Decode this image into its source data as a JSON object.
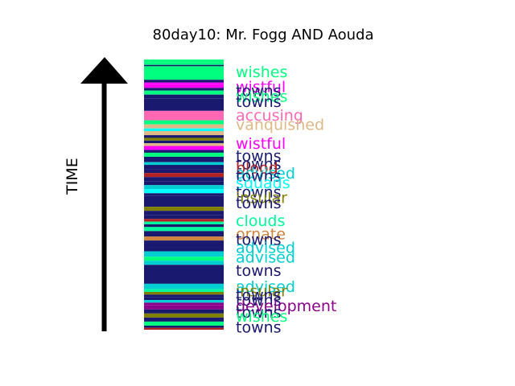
{
  "chart_data": {
    "type": "bar",
    "title": "80day10: Mr. Fogg AND Aouda",
    "axis_label": "TIME",
    "direction": "up",
    "colors": {
      "towns": "#191970",
      "wishes": "#00ff7f",
      "wistful": "#ff00ff",
      "accusing": "#ff69b4",
      "vanquished": "#deb887",
      "advised": "#00ced1",
      "blood": "#b22222",
      "squads": "#00ffff",
      "insular": "#808000",
      "clouds": "#00fa9a",
      "ornate": "#cd853f",
      "development": "#8b008b"
    },
    "bands": [
      {
        "t0": 0.0,
        "t1": 0.01,
        "word": "wishes"
      },
      {
        "t0": 0.01,
        "t1": 0.02,
        "word": "wishes"
      },
      {
        "t0": 0.02,
        "t1": 0.025,
        "word": "towns"
      },
      {
        "t0": 0.025,
        "t1": 0.075,
        "word": "wishes"
      },
      {
        "t0": 0.075,
        "t1": 0.085,
        "word": "towns"
      },
      {
        "t0": 0.085,
        "t1": 0.09,
        "word": "wistful"
      },
      {
        "t0": 0.09,
        "t1": 0.105,
        "word": "wistful"
      },
      {
        "t0": 0.105,
        "t1": 0.115,
        "word": "towns"
      },
      {
        "t0": 0.115,
        "t1": 0.13,
        "word": "wishes"
      },
      {
        "t0": 0.13,
        "t1": 0.145,
        "word": "towns"
      },
      {
        "t0": 0.145,
        "t1": 0.19,
        "word": "towns"
      },
      {
        "t0": 0.19,
        "t1": 0.225,
        "word": "accusing"
      },
      {
        "t0": 0.225,
        "t1": 0.24,
        "word": "wishes"
      },
      {
        "t0": 0.24,
        "t1": 0.255,
        "word": "vanquished"
      },
      {
        "t0": 0.255,
        "t1": 0.265,
        "word": "squads"
      },
      {
        "t0": 0.265,
        "t1": 0.28,
        "word": "vanquished"
      },
      {
        "t0": 0.28,
        "t1": 0.29,
        "word": "towns"
      },
      {
        "t0": 0.29,
        "t1": 0.3,
        "word": "insular"
      },
      {
        "t0": 0.3,
        "t1": 0.31,
        "word": "towns"
      },
      {
        "t0": 0.31,
        "t1": 0.32,
        "word": "vanquished"
      },
      {
        "t0": 0.32,
        "t1": 0.335,
        "word": "wistful"
      },
      {
        "t0": 0.335,
        "t1": 0.345,
        "word": "towns"
      },
      {
        "t0": 0.345,
        "t1": 0.36,
        "word": "wishes"
      },
      {
        "t0": 0.36,
        "t1": 0.38,
        "word": "towns"
      },
      {
        "t0": 0.38,
        "t1": 0.39,
        "word": "advised"
      },
      {
        "t0": 0.39,
        "t1": 0.405,
        "word": "towns"
      },
      {
        "t0": 0.405,
        "t1": 0.42,
        "word": "towns"
      },
      {
        "t0": 0.42,
        "t1": 0.435,
        "word": "blood"
      },
      {
        "t0": 0.435,
        "t1": 0.45,
        "word": "towns"
      },
      {
        "t0": 0.45,
        "t1": 0.465,
        "word": "towns"
      },
      {
        "t0": 0.465,
        "t1": 0.48,
        "word": "advised"
      },
      {
        "t0": 0.48,
        "t1": 0.495,
        "word": "squads"
      },
      {
        "t0": 0.495,
        "t1": 0.505,
        "word": "towns"
      },
      {
        "t0": 0.505,
        "t1": 0.545,
        "word": "towns"
      },
      {
        "t0": 0.545,
        "t1": 0.56,
        "word": "insular"
      },
      {
        "t0": 0.56,
        "t1": 0.575,
        "word": "towns"
      },
      {
        "t0": 0.575,
        "t1": 0.59,
        "word": "towns"
      },
      {
        "t0": 0.59,
        "t1": 0.6,
        "word": "blood"
      },
      {
        "t0": 0.6,
        "t1": 0.61,
        "word": "clouds"
      },
      {
        "t0": 0.61,
        "t1": 0.62,
        "word": "towns"
      },
      {
        "t0": 0.62,
        "t1": 0.635,
        "word": "clouds"
      },
      {
        "t0": 0.635,
        "t1": 0.655,
        "word": "towns"
      },
      {
        "t0": 0.655,
        "t1": 0.67,
        "word": "ornate"
      },
      {
        "t0": 0.67,
        "t1": 0.68,
        "word": "towns"
      },
      {
        "t0": 0.68,
        "t1": 0.695,
        "word": "towns"
      },
      {
        "t0": 0.695,
        "t1": 0.71,
        "word": "towns"
      },
      {
        "t0": 0.71,
        "t1": 0.73,
        "word": "advised"
      },
      {
        "t0": 0.73,
        "t1": 0.745,
        "word": "wishes"
      },
      {
        "t0": 0.745,
        "t1": 0.76,
        "word": "advised"
      },
      {
        "t0": 0.76,
        "t1": 0.83,
        "word": "towns"
      },
      {
        "t0": 0.83,
        "t1": 0.85,
        "word": "advised"
      },
      {
        "t0": 0.85,
        "t1": 0.86,
        "word": "clouds"
      },
      {
        "t0": 0.86,
        "t1": 0.87,
        "word": "insular"
      },
      {
        "t0": 0.87,
        "t1": 0.88,
        "word": "towns"
      },
      {
        "t0": 0.88,
        "t1": 0.89,
        "word": "towns"
      },
      {
        "t0": 0.89,
        "t1": 0.9,
        "word": "advised"
      },
      {
        "t0": 0.9,
        "t1": 0.91,
        "word": "development"
      },
      {
        "t0": 0.91,
        "t1": 0.925,
        "word": "development"
      },
      {
        "t0": 0.925,
        "t1": 0.94,
        "word": "towns"
      },
      {
        "t0": 0.94,
        "t1": 0.955,
        "word": "insular"
      },
      {
        "t0": 0.955,
        "t1": 0.97,
        "word": "towns"
      },
      {
        "t0": 0.97,
        "t1": 0.985,
        "word": "wishes"
      },
      {
        "t0": 0.985,
        "t1": 0.993,
        "word": "towns"
      },
      {
        "t0": 0.993,
        "t1": 1.0,
        "word": "blood"
      }
    ],
    "labels": [
      {
        "t": 0.045,
        "word": "wishes"
      },
      {
        "t": 0.1,
        "word": "wistful"
      },
      {
        "t": 0.115,
        "word": "towns"
      },
      {
        "t": 0.135,
        "word": "wishes"
      },
      {
        "t": 0.155,
        "word": "towns"
      },
      {
        "t": 0.205,
        "word": "accusing"
      },
      {
        "t": 0.24,
        "word": "vanquished"
      },
      {
        "t": 0.31,
        "word": "wistful"
      },
      {
        "t": 0.355,
        "word": "towns"
      },
      {
        "t": 0.385,
        "word": "towns"
      },
      {
        "t": 0.4,
        "word": "blood"
      },
      {
        "t": 0.42,
        "word": "advised"
      },
      {
        "t": 0.43,
        "word": "towns"
      },
      {
        "t": 0.455,
        "word": "squads"
      },
      {
        "t": 0.49,
        "word": "towns"
      },
      {
        "t": 0.51,
        "word": "insular"
      },
      {
        "t": 0.53,
        "word": "towns"
      },
      {
        "t": 0.595,
        "word": "clouds"
      },
      {
        "t": 0.645,
        "word": "ornate"
      },
      {
        "t": 0.665,
        "word": "towns"
      },
      {
        "t": 0.695,
        "word": "advised"
      },
      {
        "t": 0.73,
        "word": "advised"
      },
      {
        "t": 0.78,
        "word": "towns"
      },
      {
        "t": 0.84,
        "word": "advised"
      },
      {
        "t": 0.855,
        "word": "insular"
      },
      {
        "t": 0.87,
        "word": "towns"
      },
      {
        "t": 0.89,
        "word": "towns"
      },
      {
        "t": 0.91,
        "word": "development"
      },
      {
        "t": 0.935,
        "word": "towns"
      },
      {
        "t": 0.95,
        "word": "wishes"
      },
      {
        "t": 0.99,
        "word": "towns"
      }
    ]
  }
}
